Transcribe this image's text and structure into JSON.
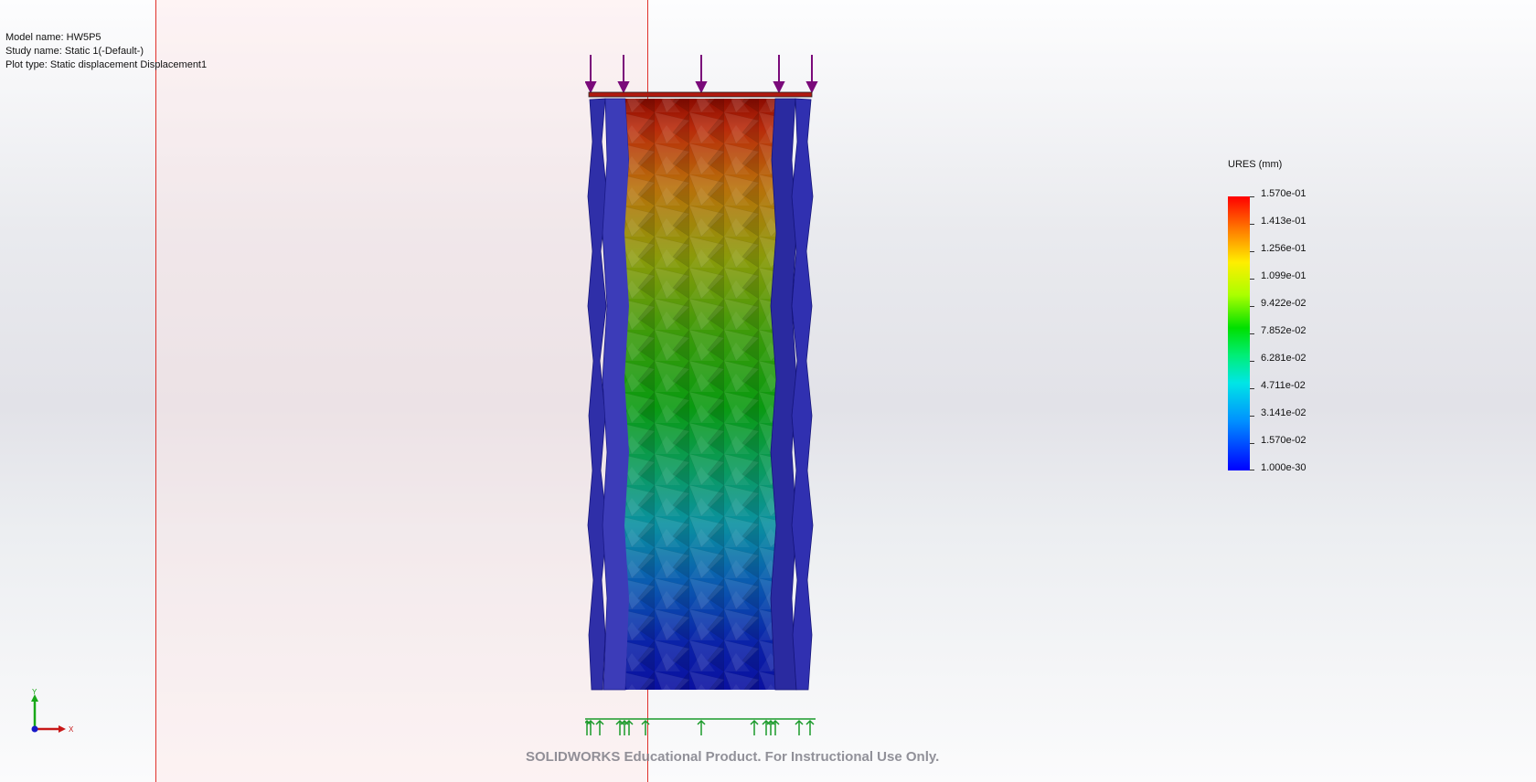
{
  "info": {
    "model_name": "Model name: HW5P5",
    "study_name": "Study name: Static 1(-Default-)",
    "plot_type": "Plot type: Static displacement Displacement1"
  },
  "legend": {
    "title": "URES (mm)",
    "labels": [
      "1.570e-01",
      "1.413e-01",
      "1.256e-01",
      "1.099e-01",
      "9.422e-02",
      "7.852e-02",
      "6.281e-02",
      "4.711e-02",
      "3.141e-02",
      "1.570e-02",
      "1.000e-30"
    ],
    "colors": [
      "#ff0000",
      "#ff7a00",
      "#ffee00",
      "#aaff00",
      "#00e000",
      "#00ee77",
      "#00e6e6",
      "#0090ff",
      "#0000ff"
    ]
  },
  "triad": {
    "y_label": "Y",
    "x_label": "X"
  },
  "watermark": "SOLIDWORKS Educational Product. For Instructional Use Only.",
  "colors": {
    "load_arrow": "#7a0a7a",
    "fixture": "#1a9a2a",
    "panel_border": "#e0302a"
  }
}
